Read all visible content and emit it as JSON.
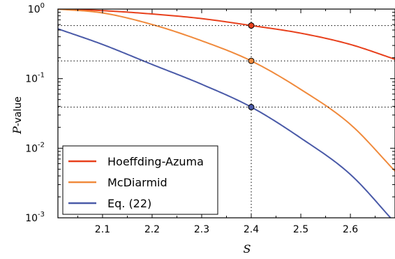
{
  "chart_data": {
    "type": "line",
    "xlabel_var": "S",
    "ylabel_var": "P",
    "ylabel_suffix": "-value",
    "xlim": [
      2.01,
      2.69
    ],
    "ylim": [
      0.001,
      1
    ],
    "yscale": "log",
    "x_ticks": [
      "2.1",
      "2.2",
      "2.3",
      "2.4",
      "2.5",
      "2.6"
    ],
    "y_ticks": [
      {
        "base": "10",
        "exp": "0"
      },
      {
        "base": "10",
        "exp": "-1"
      },
      {
        "base": "10",
        "exp": "-2"
      },
      {
        "base": "10",
        "exp": "-3"
      }
    ],
    "grid": false,
    "legend_position": "lower-left",
    "reference_x": 2.4,
    "series": [
      {
        "name": "Hoeffding-Azuma",
        "color": "#e8401c",
        "marker_y": 0.58,
        "x": [
          2.01,
          2.1,
          2.2,
          2.3,
          2.4,
          2.5,
          2.6,
          2.69
        ],
        "y": [
          1.0,
          0.95,
          0.85,
          0.73,
          0.58,
          0.45,
          0.31,
          0.19
        ]
      },
      {
        "name": "McDiarmid",
        "color": "#f08a3c",
        "marker_y": 0.18,
        "x": [
          2.01,
          2.1,
          2.2,
          2.3,
          2.4,
          2.5,
          2.6,
          2.69
        ],
        "y": [
          1.0,
          0.88,
          0.6,
          0.35,
          0.18,
          0.07,
          0.022,
          0.0047
        ]
      },
      {
        "name": "Eq. (22)",
        "color": "#4a5aa8",
        "marker_y": 0.039,
        "x": [
          2.01,
          2.1,
          2.2,
          2.3,
          2.4,
          2.5,
          2.6,
          2.69
        ],
        "y": [
          0.52,
          0.31,
          0.16,
          0.083,
          0.039,
          0.014,
          0.0042,
          0.00085
        ]
      }
    ]
  }
}
